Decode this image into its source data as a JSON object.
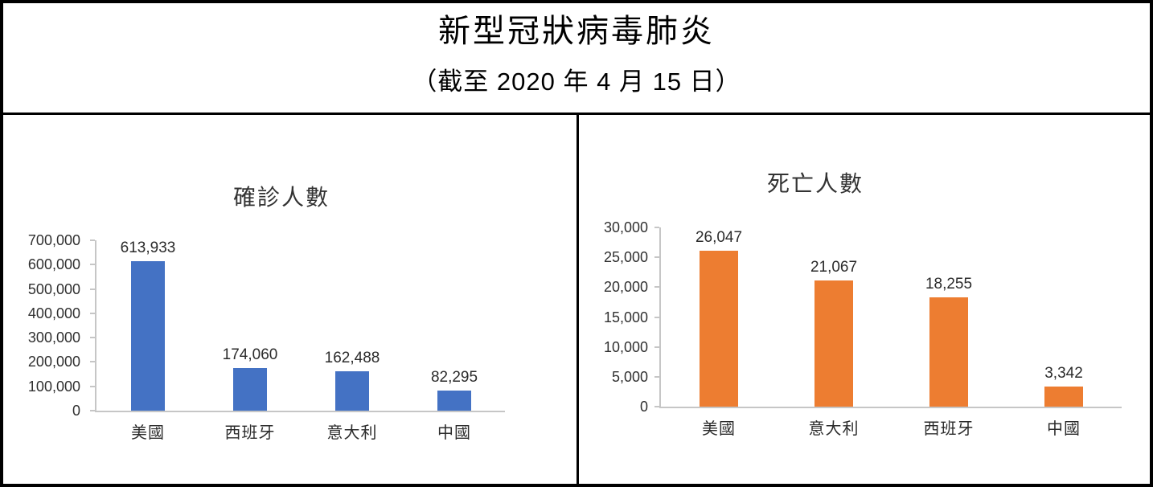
{
  "page": {
    "title": "新型冠狀病毒肺炎",
    "subtitle": "（截至 2020 年 4 月 15 日）"
  },
  "colors": {
    "confirmed_bar": "#4472C4",
    "deaths_bar": "#ED7D31",
    "axis_line": "#c6c6c6",
    "border": "#000000"
  },
  "chart_data": [
    {
      "type": "bar",
      "title": "確診人數",
      "categories": [
        "美國",
        "西班牙",
        "意大利",
        "中國"
      ],
      "values": [
        613933,
        174060,
        162488,
        82295
      ],
      "data_labels": [
        "613,933",
        "174,060",
        "162,488",
        "82,295"
      ],
      "ylim": [
        0,
        700000
      ],
      "ytick_step": 100000,
      "yticks": [
        "700,000",
        "600,000",
        "500,000",
        "400,000",
        "300,000",
        "200,000",
        "100,000",
        "0"
      ],
      "bar_color": "#4472C4",
      "grid": false,
      "legend": "none"
    },
    {
      "type": "bar",
      "title": "死亡人數",
      "categories": [
        "美國",
        "意大利",
        "西班牙",
        "中國"
      ],
      "values": [
        26047,
        21067,
        18255,
        3342
      ],
      "data_labels": [
        "26,047",
        "21,067",
        "18,255",
        "3,342"
      ],
      "ylim": [
        0,
        30000
      ],
      "ytick_step": 5000,
      "yticks": [
        "30,000",
        "25,000",
        "20,000",
        "15,000",
        "10,000",
        "5,000",
        "0"
      ],
      "bar_color": "#ED7D31",
      "grid": false,
      "legend": "none"
    }
  ]
}
